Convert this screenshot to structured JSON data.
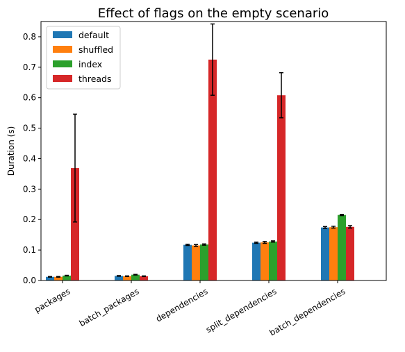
{
  "chart_data": {
    "type": "bar",
    "title": "Effect of flags on the empty scenario",
    "xlabel": "",
    "ylabel": "Duration (s)",
    "ylim": [
      0,
      0.85
    ],
    "yticks": [
      "0.0",
      "0.1",
      "0.2",
      "0.3",
      "0.4",
      "0.5",
      "0.6",
      "0.7",
      "0.8"
    ],
    "categories": [
      "packages",
      "batch_packages",
      "dependencies",
      "split_dependencies",
      "batch_dependencies"
    ],
    "series": [
      {
        "name": "default",
        "color": "#1f77b4",
        "values": [
          0.012,
          0.015,
          0.117,
          0.124,
          0.174
        ],
        "errors": [
          0.001,
          0.001,
          0.002,
          0.002,
          0.003
        ]
      },
      {
        "name": "shuffled",
        "color": "#ff7f0e",
        "values": [
          0.012,
          0.014,
          0.115,
          0.125,
          0.175
        ],
        "errors": [
          0.001,
          0.001,
          0.003,
          0.003,
          0.003
        ]
      },
      {
        "name": "index",
        "color": "#2ca02c",
        "values": [
          0.016,
          0.019,
          0.118,
          0.128,
          0.215
        ],
        "errors": [
          0.001,
          0.001,
          0.002,
          0.002,
          0.002
        ]
      },
      {
        "name": "threads",
        "color": "#d62728",
        "values": [
          0.369,
          0.014,
          0.725,
          0.608,
          0.176
        ],
        "errors": [
          0.177,
          0.001,
          0.117,
          0.074,
          0.004
        ]
      }
    ],
    "grid": false,
    "legend_position": "top-left"
  }
}
